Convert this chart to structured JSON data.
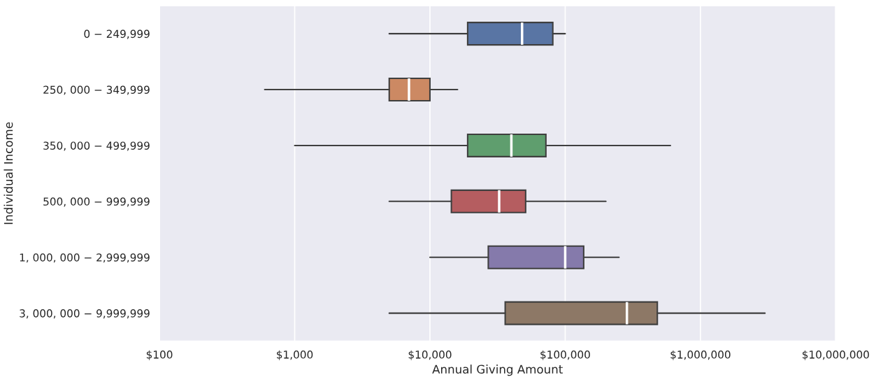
{
  "chart_data": {
    "type": "box",
    "orientation": "horizontal",
    "log": "x",
    "grid": "x",
    "xlabel": "Annual Giving Amount",
    "ylabel": "Individual Income",
    "categories": [
      "0 − 249,999",
      "250, 000 − 349,999",
      "350, 000 − 499,999",
      "500, 000 − 999,999",
      "1, 000, 000 − 2,999,999",
      "3, 000, 000 − 9,999,999"
    ],
    "colors": [
      "#5975a4",
      "#cc8963",
      "#5f9e6e",
      "#b55d60",
      "#857aab",
      "#8d7866"
    ],
    "boxes": [
      {
        "low": 5000,
        "q1": 19000,
        "median": 48000,
        "q3": 81000,
        "high": 100000
      },
      {
        "low": 600,
        "q1": 5000,
        "median": 7000,
        "q3": 10000,
        "high": 16000
      },
      {
        "low": 1000,
        "q1": 19000,
        "median": 40000,
        "q3": 72000,
        "high": 600000
      },
      {
        "low": 5000,
        "q1": 14400,
        "median": 32500,
        "q3": 51000,
        "high": 200000
      },
      {
        "low": 10000,
        "q1": 27000,
        "median": 100000,
        "q3": 137000,
        "high": 250000
      },
      {
        "low": 5000,
        "q1": 36000,
        "median": 286000,
        "q3": 480000,
        "high": 3000000
      }
    ],
    "xlim": [
      100,
      10000000
    ],
    "xticks": [
      {
        "value": 100,
        "label": "$100"
      },
      {
        "value": 1000,
        "label": "$1,000"
      },
      {
        "value": 10000,
        "label": "$10,000"
      },
      {
        "value": 100000,
        "label": "$100,000"
      },
      {
        "value": 1000000,
        "label": "$1,000,000"
      },
      {
        "value": 10000000,
        "label": "$10,000,000"
      }
    ]
  }
}
